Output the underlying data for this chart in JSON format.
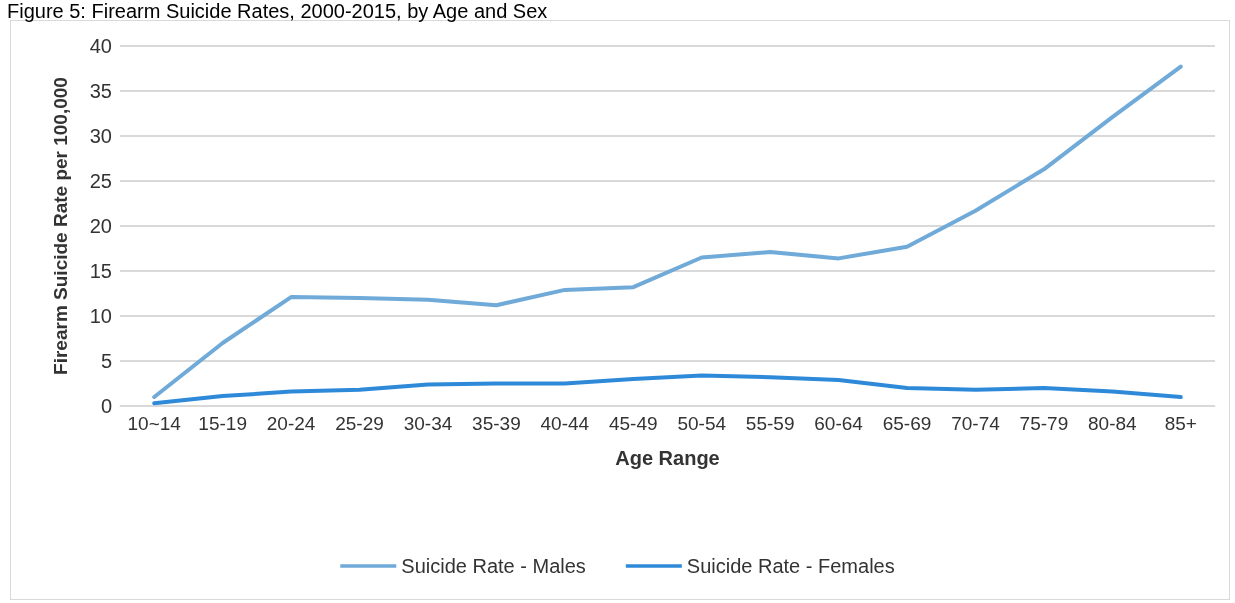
{
  "chart_data": {
    "type": "line",
    "title": "Figure 5: Firearm Suicide Rates, 2000-2015, by Age and Sex",
    "xlabel": "Age Range",
    "ylabel": "Firearm Suicide Rate per 100,000",
    "categories": [
      "10~14",
      "15-19",
      "20-24",
      "25-29",
      "30-34",
      "35-39",
      "40-44",
      "45-49",
      "50-54",
      "55-59",
      "60-64",
      "65-69",
      "70-74",
      "75-79",
      "80-84",
      "85+"
    ],
    "series": [
      {
        "name": "Suicide Rate - Males",
        "color": "#70aad8",
        "values": [
          1.0,
          7.0,
          12.1,
          12.0,
          11.8,
          11.2,
          12.9,
          13.2,
          16.5,
          17.1,
          16.4,
          17.7,
          21.7,
          26.3,
          32.1,
          37.7
        ]
      },
      {
        "name": "Suicide Rate - Females",
        "color": "#2e8ad8",
        "values": [
          0.3,
          1.1,
          1.6,
          1.8,
          2.4,
          2.5,
          2.5,
          3.0,
          3.4,
          3.2,
          2.9,
          2.0,
          1.8,
          2.0,
          1.6,
          1.0
        ]
      }
    ],
    "ylim": [
      0,
      40
    ],
    "yticks": [
      0,
      5,
      10,
      15,
      20,
      25,
      30,
      35,
      40
    ],
    "grid": "y",
    "legend": "bottom",
    "marker": "none",
    "line_style": "solid"
  }
}
